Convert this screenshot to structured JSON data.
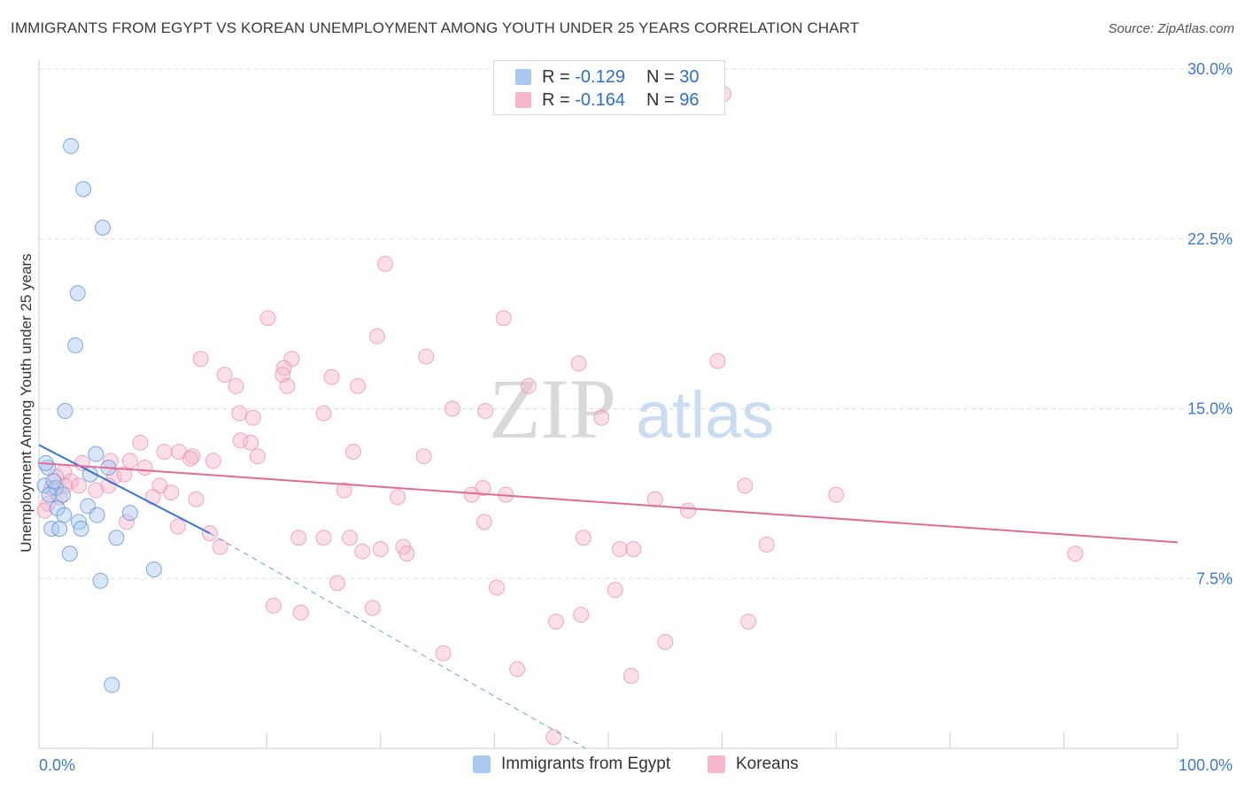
{
  "header": {
    "title": "IMMIGRANTS FROM EGYPT VS KOREAN UNEMPLOYMENT AMONG YOUTH UNDER 25 YEARS CORRELATION CHART",
    "source": "Source: ZipAtlas.com"
  },
  "watermark": {
    "zip": "ZIP",
    "atlas": "atlas"
  },
  "stats": {
    "r_label": "R =",
    "n_label": "N =",
    "rows": [
      {
        "r": "-0.129",
        "n": "30",
        "color": "#a9c8ef"
      },
      {
        "r": "-0.164",
        "n": "96",
        "color": "#f5b6cb"
      }
    ]
  },
  "legend": {
    "items": [
      {
        "label": "Immigrants from Egypt",
        "color": "#a9c8ef"
      },
      {
        "label": "Koreans",
        "color": "#f5b6cb"
      }
    ]
  },
  "chart_data": {
    "type": "scatter",
    "title": "IMMIGRANTS FROM EGYPT VS KOREAN UNEMPLOYMENT AMONG YOUTH UNDER 25 YEARS CORRELATION CHART",
    "xlabel": "",
    "ylabel": "Unemployment Among Youth under 25 years",
    "xlim": [
      0,
      100
    ],
    "ylim": [
      0,
      30.0
    ],
    "x_tick_labels": [
      "0.0%",
      "100.0%"
    ],
    "y_ticks": [
      7.5,
      15.0,
      22.5,
      30.0
    ],
    "y_tick_labels": [
      "7.5%",
      "15.0%",
      "22.5%",
      "30.0%"
    ],
    "grid": true,
    "series": [
      {
        "name": "Immigrants from Egypt",
        "color": "#5b8fd6",
        "fill": "#a9c8ef",
        "trend": {
          "x1": 0.0,
          "y1": 13.4,
          "x2": 15.0,
          "y2": 9.5,
          "dash_x2": 48.0,
          "dash_y2": 0.0,
          "line_color": "#3674cf"
        },
        "points": [
          {
            "x": 2.8,
            "y": 26.6
          },
          {
            "x": 3.9,
            "y": 24.7
          },
          {
            "x": 5.6,
            "y": 23.0
          },
          {
            "x": 3.4,
            "y": 20.1
          },
          {
            "x": 3.2,
            "y": 17.8
          },
          {
            "x": 2.3,
            "y": 14.9
          },
          {
            "x": 5.0,
            "y": 13.0
          },
          {
            "x": 0.8,
            "y": 12.4
          },
          {
            "x": 6.1,
            "y": 12.4
          },
          {
            "x": 4.5,
            "y": 12.1
          },
          {
            "x": 0.5,
            "y": 11.6
          },
          {
            "x": 1.5,
            "y": 11.5
          },
          {
            "x": 0.9,
            "y": 11.2
          },
          {
            "x": 2.1,
            "y": 11.2
          },
          {
            "x": 1.6,
            "y": 10.6
          },
          {
            "x": 4.3,
            "y": 10.7
          },
          {
            "x": 2.2,
            "y": 10.3
          },
          {
            "x": 5.1,
            "y": 10.3
          },
          {
            "x": 8.0,
            "y": 10.4
          },
          {
            "x": 3.5,
            "y": 10.0
          },
          {
            "x": 1.1,
            "y": 9.7
          },
          {
            "x": 1.8,
            "y": 9.7
          },
          {
            "x": 3.7,
            "y": 9.7
          },
          {
            "x": 6.8,
            "y": 9.3
          },
          {
            "x": 2.7,
            "y": 8.6
          },
          {
            "x": 5.4,
            "y": 7.4
          },
          {
            "x": 10.1,
            "y": 7.9
          },
          {
            "x": 6.4,
            "y": 2.8
          },
          {
            "x": 1.3,
            "y": 11.8
          },
          {
            "x": 0.6,
            "y": 12.6
          }
        ]
      },
      {
        "name": "Koreans",
        "color": "#ec8fb0",
        "fill": "#f5b6cb",
        "trend": {
          "x1": 0.0,
          "y1": 12.6,
          "x2": 100.0,
          "y2": 9.1,
          "line_color": "#e26b96"
        },
        "points": [
          {
            "x": 60.1,
            "y": 28.9
          },
          {
            "x": 30.4,
            "y": 21.4
          },
          {
            "x": 20.1,
            "y": 19.0
          },
          {
            "x": 40.8,
            "y": 19.0
          },
          {
            "x": 29.7,
            "y": 18.2
          },
          {
            "x": 34.0,
            "y": 17.3
          },
          {
            "x": 14.2,
            "y": 17.2
          },
          {
            "x": 22.2,
            "y": 17.2
          },
          {
            "x": 47.4,
            "y": 17.0
          },
          {
            "x": 59.6,
            "y": 17.1
          },
          {
            "x": 21.5,
            "y": 16.8
          },
          {
            "x": 16.3,
            "y": 16.5
          },
          {
            "x": 21.4,
            "y": 16.5
          },
          {
            "x": 25.7,
            "y": 16.4
          },
          {
            "x": 17.3,
            "y": 16.0
          },
          {
            "x": 21.8,
            "y": 16.0
          },
          {
            "x": 28.0,
            "y": 16.0
          },
          {
            "x": 43.0,
            "y": 16.0
          },
          {
            "x": 36.3,
            "y": 15.0
          },
          {
            "x": 17.6,
            "y": 14.8
          },
          {
            "x": 25.0,
            "y": 14.8
          },
          {
            "x": 39.2,
            "y": 14.9
          },
          {
            "x": 49.4,
            "y": 14.6
          },
          {
            "x": 18.8,
            "y": 14.6
          },
          {
            "x": 17.7,
            "y": 13.6
          },
          {
            "x": 18.6,
            "y": 13.5
          },
          {
            "x": 8.9,
            "y": 13.5
          },
          {
            "x": 11.0,
            "y": 13.1
          },
          {
            "x": 12.3,
            "y": 13.1
          },
          {
            "x": 13.5,
            "y": 12.9
          },
          {
            "x": 19.2,
            "y": 12.9
          },
          {
            "x": 27.6,
            "y": 13.1
          },
          {
            "x": 33.8,
            "y": 12.9
          },
          {
            "x": 6.3,
            "y": 12.7
          },
          {
            "x": 8.0,
            "y": 12.7
          },
          {
            "x": 13.3,
            "y": 12.8
          },
          {
            "x": 15.3,
            "y": 12.7
          },
          {
            "x": 3.8,
            "y": 12.6
          },
          {
            "x": 9.3,
            "y": 12.4
          },
          {
            "x": 2.2,
            "y": 12.2
          },
          {
            "x": 1.5,
            "y": 12.0
          },
          {
            "x": 6.6,
            "y": 12.0
          },
          {
            "x": 7.5,
            "y": 12.1
          },
          {
            "x": 2.8,
            "y": 11.8
          },
          {
            "x": 6.1,
            "y": 11.6
          },
          {
            "x": 10.6,
            "y": 11.6
          },
          {
            "x": 11.6,
            "y": 11.3
          },
          {
            "x": 2.3,
            "y": 11.6
          },
          {
            "x": 3.5,
            "y": 11.6
          },
          {
            "x": 1.1,
            "y": 11.5
          },
          {
            "x": 5.0,
            "y": 11.4
          },
          {
            "x": 26.8,
            "y": 11.4
          },
          {
            "x": 39.0,
            "y": 11.5
          },
          {
            "x": 38.0,
            "y": 11.2
          },
          {
            "x": 41.0,
            "y": 11.2
          },
          {
            "x": 31.5,
            "y": 11.1
          },
          {
            "x": 54.1,
            "y": 11.0
          },
          {
            "x": 70.0,
            "y": 11.2
          },
          {
            "x": 1.8,
            "y": 11.1
          },
          {
            "x": 10.0,
            "y": 11.1
          },
          {
            "x": 13.8,
            "y": 11.0
          },
          {
            "x": 0.8,
            "y": 10.8
          },
          {
            "x": 57.0,
            "y": 10.5
          },
          {
            "x": 62.0,
            "y": 11.6
          },
          {
            "x": 0.5,
            "y": 10.5
          },
          {
            "x": 7.7,
            "y": 10.0
          },
          {
            "x": 39.1,
            "y": 10.0
          },
          {
            "x": 12.2,
            "y": 9.8
          },
          {
            "x": 15.0,
            "y": 9.5
          },
          {
            "x": 22.8,
            "y": 9.3
          },
          {
            "x": 25.0,
            "y": 9.3
          },
          {
            "x": 27.3,
            "y": 9.3
          },
          {
            "x": 47.8,
            "y": 9.3
          },
          {
            "x": 63.9,
            "y": 9.0
          },
          {
            "x": 15.9,
            "y": 8.9
          },
          {
            "x": 28.4,
            "y": 8.7
          },
          {
            "x": 30.0,
            "y": 8.8
          },
          {
            "x": 32.0,
            "y": 8.9
          },
          {
            "x": 32.3,
            "y": 8.6
          },
          {
            "x": 51.0,
            "y": 8.8
          },
          {
            "x": 52.2,
            "y": 8.8
          },
          {
            "x": 91.0,
            "y": 8.6
          },
          {
            "x": 26.2,
            "y": 7.3
          },
          {
            "x": 40.2,
            "y": 7.1
          },
          {
            "x": 50.6,
            "y": 7.0
          },
          {
            "x": 20.6,
            "y": 6.3
          },
          {
            "x": 23.0,
            "y": 6.0
          },
          {
            "x": 29.3,
            "y": 6.2
          },
          {
            "x": 47.6,
            "y": 5.9
          },
          {
            "x": 45.4,
            "y": 5.6
          },
          {
            "x": 62.3,
            "y": 5.6
          },
          {
            "x": 55.0,
            "y": 4.7
          },
          {
            "x": 35.5,
            "y": 4.2
          },
          {
            "x": 42.0,
            "y": 3.5
          },
          {
            "x": 52.0,
            "y": 3.2
          },
          {
            "x": 45.2,
            "y": 0.5
          }
        ]
      }
    ]
  }
}
